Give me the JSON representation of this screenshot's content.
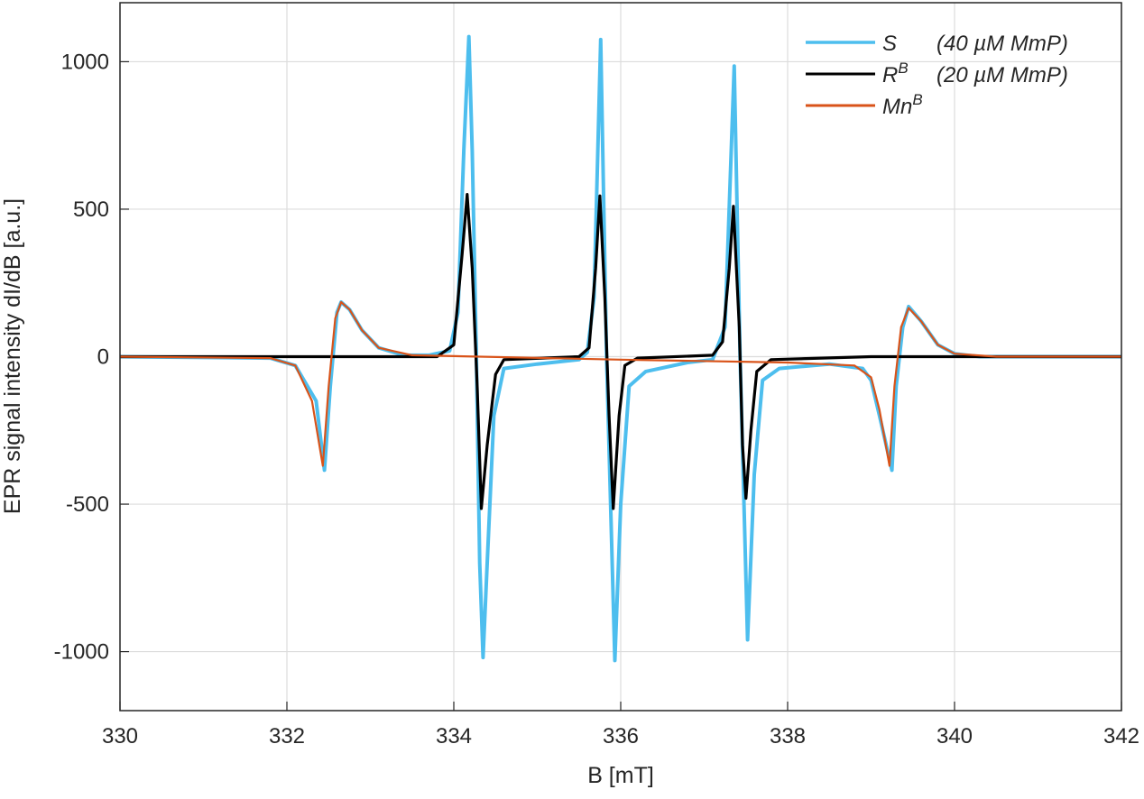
{
  "chart_data": {
    "type": "line",
    "title": "",
    "xlabel": "B [mT]",
    "ylabel": "EPR signal intensity dI/dB [a.u.]",
    "xlim": [
      330,
      342
    ],
    "ylim": [
      -1200,
      1200
    ],
    "xticks": [
      330,
      332,
      334,
      336,
      338,
      340,
      342
    ],
    "yticks": [
      -1000,
      -500,
      0,
      500,
      1000
    ],
    "grid": true,
    "legend_position": "top-right",
    "series": [
      {
        "name": "S",
        "note": "(40 µM MmP)",
        "color": "#4DBEEE",
        "x": [
          330,
          331.8,
          332.1,
          332.35,
          332.45,
          332.52,
          332.6,
          332.65,
          332.75,
          332.9,
          333.1,
          333.4,
          333.7,
          333.95,
          334.05,
          334.12,
          334.18,
          334.22,
          334.27,
          334.31,
          334.35,
          334.4,
          334.48,
          334.6,
          335.0,
          335.5,
          335.6,
          335.68,
          335.76,
          335.83,
          335.93,
          336.0,
          336.1,
          336.3,
          336.8,
          337.1,
          337.25,
          337.36,
          337.43,
          337.52,
          337.6,
          337.7,
          337.9,
          338.5,
          338.9,
          339.0,
          339.1,
          339.25,
          339.3,
          339.38,
          339.45,
          339.6,
          339.8,
          340.0,
          340.3,
          342
        ],
        "y": [
          0,
          -5,
          -30,
          -150,
          -385,
          -100,
          150,
          185,
          160,
          90,
          30,
          5,
          5,
          20,
          150,
          700,
          1085,
          700,
          0,
          -700,
          -1020,
          -700,
          -200,
          -40,
          -25,
          -10,
          15,
          200,
          1075,
          0,
          -1030,
          -500,
          -100,
          -50,
          -20,
          -10,
          100,
          985,
          0,
          -960,
          -400,
          -80,
          -40,
          -25,
          -40,
          -80,
          -200,
          -385,
          -100,
          100,
          170,
          120,
          40,
          10,
          0,
          0
        ]
      },
      {
        "name": "R",
        "sup": "B",
        "note": "(20 µM MmP)",
        "color": "#000000",
        "x": [
          330,
          333.8,
          334.0,
          334.1,
          334.16,
          334.22,
          334.28,
          334.33,
          334.4,
          334.5,
          334.6,
          335.5,
          335.62,
          335.7,
          335.75,
          335.81,
          335.86,
          335.91,
          335.98,
          336.05,
          336.2,
          337.1,
          337.22,
          337.3,
          337.35,
          337.42,
          337.46,
          337.5,
          337.56,
          337.63,
          337.8,
          339.0,
          342
        ],
        "y": [
          0,
          0,
          40,
          350,
          550,
          300,
          -100,
          -515,
          -300,
          -60,
          -10,
          0,
          30,
          300,
          545,
          200,
          -200,
          -515,
          -200,
          -30,
          -5,
          5,
          50,
          300,
          510,
          100,
          -300,
          -480,
          -250,
          -50,
          -10,
          0,
          0
        ]
      },
      {
        "name": "Mn",
        "sup": "B",
        "note": "",
        "color": "#D95319",
        "x": [
          330,
          331.8,
          332.1,
          332.3,
          332.43,
          332.5,
          332.58,
          332.65,
          332.75,
          332.9,
          333.1,
          333.5,
          336.0,
          338.0,
          338.8,
          339.0,
          339.1,
          339.22,
          339.28,
          339.36,
          339.45,
          339.6,
          339.8,
          340.0,
          340.5,
          342
        ],
        "y": [
          0,
          -5,
          -30,
          -150,
          -370,
          -100,
          130,
          185,
          160,
          90,
          30,
          5,
          -10,
          -20,
          -30,
          -70,
          -180,
          -370,
          -100,
          100,
          165,
          120,
          40,
          10,
          0,
          0
        ]
      }
    ]
  }
}
